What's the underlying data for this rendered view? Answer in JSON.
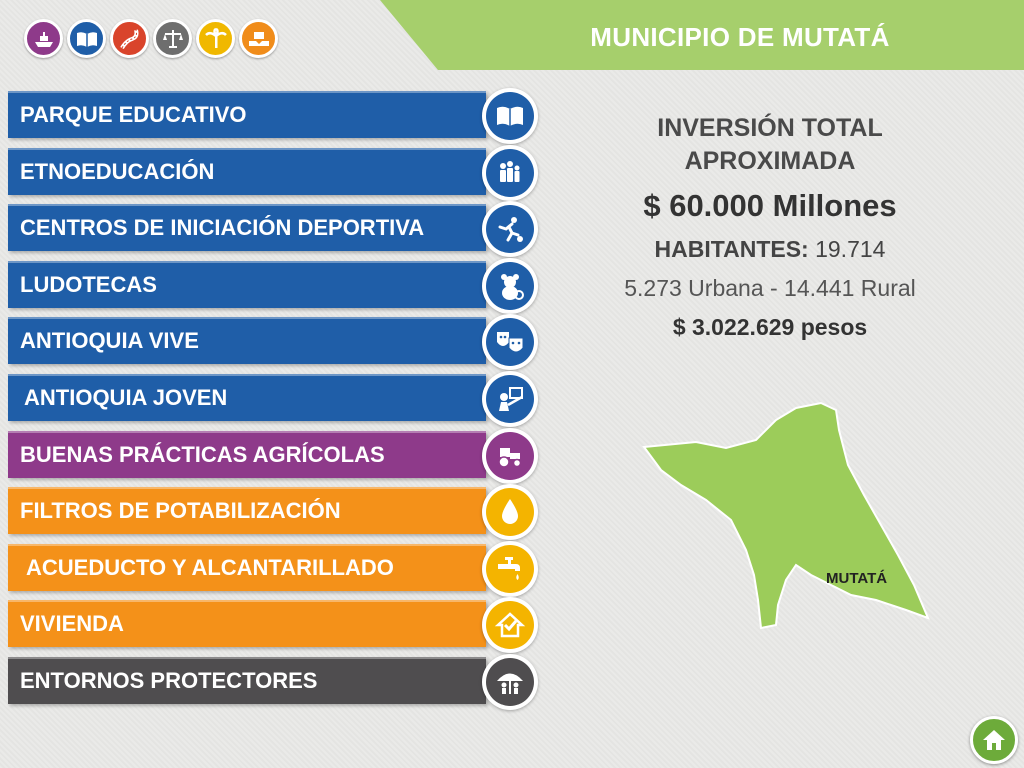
{
  "header": {
    "title": "MUNICIPIO DE MUTATÁ",
    "top_icons": [
      {
        "name": "boat-icon",
        "color": "#8e3a8a"
      },
      {
        "name": "book-icon",
        "color": "#1f5ea8"
      },
      {
        "name": "road-icon",
        "color": "#d9442b"
      },
      {
        "name": "scales-icon",
        "color": "#6e6e6e"
      },
      {
        "name": "palm-tree-icon",
        "color": "#f0b800"
      },
      {
        "name": "hands-icon",
        "color": "#f08c1a"
      }
    ]
  },
  "menu": {
    "items": [
      {
        "label": "PARQUE EDUCATIVO",
        "color": "#1f5ea8",
        "icon": "book-icon"
      },
      {
        "label": "ETNOEDUCACIÓN",
        "color": "#1f5ea8",
        "icon": "family-icon"
      },
      {
        "label": "CENTROS DE INICIACIÓN DEPORTIVA",
        "color": "#1f5ea8",
        "icon": "sports-icon"
      },
      {
        "label": "LUDOTECAS",
        "color": "#1f5ea8",
        "icon": "teddy-bear-icon"
      },
      {
        "label": "ANTIOQUIA VIVE",
        "color": "#1f5ea8",
        "icon": "theater-masks-icon"
      },
      {
        "label": "ANTIOQUIA JOVEN",
        "color": "#1f5ea8",
        "icon": "youth-icon"
      },
      {
        "label": "BUENAS PRÁCTICAS AGRÍCOLAS",
        "color": "#8e3a8a",
        "icon": "tractor-icon"
      },
      {
        "label": "FILTROS DE POTABILIZACIÓN",
        "color": "#f49119",
        "icon": "water-drop-icon"
      },
      {
        "label": "ACUEDUCTO Y ALCANTARILLADO",
        "color": "#f49119",
        "icon": "faucet-icon"
      },
      {
        "label": "VIVIENDA",
        "color": "#f49119",
        "icon": "house-check-icon"
      },
      {
        "label": "ENTORNOS PROTECTORES",
        "color": "#4f4d4f",
        "icon": "umbrella-family-icon"
      }
    ]
  },
  "info": {
    "investment_title": "INVERSIÓN TOTAL APROXIMADA",
    "investment_amount": "$ 60.000 Millones",
    "inhabitants_label": "HABITANTES:",
    "inhabitants_value": "19.714",
    "population_split": "5.273 Urbana - 14.441 Rural",
    "per_capita": "$ 3.022.629 pesos"
  },
  "map": {
    "label": "MUTATÁ",
    "fill_color": "#9ccc5a"
  }
}
